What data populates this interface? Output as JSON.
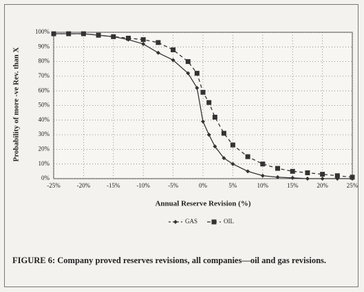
{
  "chart_data": {
    "type": "line",
    "caption": "FIGURE 6: Company proved reserves revisions, all companies—oil and gas revisions.",
    "xlabel": "Annual Reserve Revision (%)",
    "ylabel": "Probability of more -ve Rev. than X",
    "x": [
      -25,
      -22.5,
      -20,
      -17.5,
      -15,
      -12.5,
      -10,
      -7.5,
      -5,
      -2.5,
      -1,
      0,
      1,
      2,
      3.5,
      5,
      7.5,
      10,
      12.5,
      15,
      17.5,
      20,
      22.5,
      25
    ],
    "series": [
      {
        "name": "GAS",
        "color": "#333333",
        "marker": "diamond",
        "dash": "none",
        "values": [
          99,
          99,
          99,
          98,
          97,
          95,
          92,
          86,
          81,
          72,
          62,
          39,
          30,
          22,
          14,
          10,
          5,
          2,
          1,
          0.5,
          0,
          0,
          0,
          0
        ]
      },
      {
        "name": "OIL",
        "color": "#333333",
        "marker": "square",
        "dash": "5 4",
        "values": [
          99,
          99,
          99,
          98,
          97,
          96,
          95,
          93,
          88,
          80,
          72,
          59,
          52,
          42,
          31,
          23,
          15,
          10,
          7,
          5,
          4,
          3,
          2,
          1
        ]
      }
    ],
    "xlim": [
      -25,
      25
    ],
    "ylim": [
      0,
      100
    ],
    "xticks": [
      {
        "value": -25,
        "label": "-25%"
      },
      {
        "value": -20,
        "label": "-20%"
      },
      {
        "value": -15,
        "label": "-15%"
      },
      {
        "value": -10,
        "label": "-10%"
      },
      {
        "value": -5,
        "label": "-5%"
      },
      {
        "value": 0,
        "label": "0%"
      },
      {
        "value": 5,
        "label": "5%"
      },
      {
        "value": 10,
        "label": "10%"
      },
      {
        "value": 15,
        "label": "15%"
      },
      {
        "value": 20,
        "label": "20%"
      },
      {
        "value": 25,
        "label": "25%"
      }
    ],
    "yticks": [
      {
        "value": 0,
        "label": "0%"
      },
      {
        "value": 10,
        "label": "10%"
      },
      {
        "value": 20,
        "label": "20%"
      },
      {
        "value": 30,
        "label": "30%"
      },
      {
        "value": 40,
        "label": "40%"
      },
      {
        "value": 50,
        "label": "50%"
      },
      {
        "value": 60,
        "label": "60%"
      },
      {
        "value": 70,
        "label": "70%"
      },
      {
        "value": 80,
        "label": "80%"
      },
      {
        "value": 90,
        "label": "90%"
      },
      {
        "value": 100,
        "label": "100%"
      }
    ],
    "grid": true,
    "legend": "bottom"
  }
}
